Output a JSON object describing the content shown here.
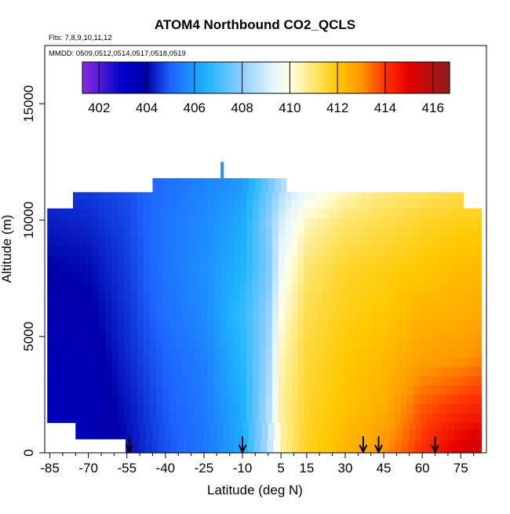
{
  "chart_data": {
    "type": "heatmap",
    "title": "ATOM4 Northbound CO2_QCLS",
    "subtitle_lines": [
      "Flts: 7,8,9,10,11,12",
      "MMDD: 0509,0512,0514,0517,0518,0519"
    ],
    "xlabel": "Latitude (deg N)",
    "ylabel": "Altitude (m)",
    "xlim": [
      -87,
      85
    ],
    "ylim": [
      0,
      17500
    ],
    "x_ticks": [
      -85,
      -70,
      -55,
      -40,
      -25,
      -10,
      5,
      15,
      30,
      45,
      60,
      75
    ],
    "y_ticks": [
      0,
      5000,
      10000,
      15000
    ],
    "colorbar": {
      "ticks": [
        402,
        404,
        406,
        408,
        410,
        412,
        414,
        416
      ],
      "range": [
        401.3,
        416.7
      ],
      "stops": [
        {
          "value": 401.3,
          "color": "#8a2be2"
        },
        {
          "value": 403.0,
          "color": "#0000c8"
        },
        {
          "value": 404.0,
          "color": "#0000aa"
        },
        {
          "value": 405.0,
          "color": "#1e64ff"
        },
        {
          "value": 406.5,
          "color": "#1eb4ff"
        },
        {
          "value": 408.0,
          "color": "#8ccfff"
        },
        {
          "value": 409.3,
          "color": "#e6f5ff"
        },
        {
          "value": 410.0,
          "color": "#ffffe6"
        },
        {
          "value": 411.0,
          "color": "#ffe66e"
        },
        {
          "value": 412.0,
          "color": "#ffc800"
        },
        {
          "value": 413.0,
          "color": "#ff9600"
        },
        {
          "value": 414.0,
          "color": "#ff3200"
        },
        {
          "value": 415.0,
          "color": "#e60000"
        },
        {
          "value": 416.7,
          "color": "#8c1e1e"
        }
      ]
    },
    "arrows_latitude": [
      -54,
      -10,
      37,
      43,
      65
    ],
    "lat_nodes": [
      -85,
      -70,
      -55,
      -40,
      -25,
      -10,
      0,
      5,
      15,
      30,
      45,
      60,
      75,
      83
    ],
    "alt_nodes": [
      0,
      2000,
      4000,
      6000,
      8000,
      10000,
      11500
    ],
    "co2_grid": [
      [
        403.4,
        403.5,
        404.1,
        404.8,
        405.3,
        406.3,
        408.5,
        410.5,
        411.7,
        412.4,
        413.0,
        414.1,
        415.3,
        415.6
      ],
      [
        403.5,
        403.6,
        404.2,
        404.9,
        405.4,
        406.4,
        408.4,
        410.6,
        411.6,
        412.1,
        412.5,
        413.6,
        414.1,
        414.3
      ],
      [
        403.6,
        403.7,
        404.4,
        405.0,
        405.5,
        406.6,
        408.2,
        410.4,
        411.5,
        412.0,
        412.3,
        412.8,
        413.0,
        413.2
      ],
      [
        403.8,
        403.9,
        404.5,
        405.2,
        405.7,
        406.8,
        408.0,
        410.0,
        411.3,
        411.8,
        412.0,
        412.4,
        412.5,
        412.6
      ],
      [
        404.0,
        404.1,
        404.6,
        405.3,
        405.8,
        406.5,
        407.7,
        409.5,
        411.0,
        411.6,
        411.8,
        412.0,
        412.2,
        412.3
      ],
      [
        404.3,
        404.4,
        404.7,
        405.3,
        405.7,
        406.3,
        407.9,
        409.0,
        410.3,
        411.0,
        411.3,
        411.6,
        411.8,
        411.8
      ],
      [
        404.5,
        404.6,
        404.8,
        405.2,
        405.6,
        406.0,
        407.5,
        408.4,
        409.4,
        410.2,
        410.8,
        411.0,
        411.2,
        411.2
      ]
    ],
    "coverage": [
      {
        "alt_bottom": 0,
        "alt_top": 600,
        "lat_min": -55.5,
        "lat_max": 83
      },
      {
        "alt_bottom": 600,
        "alt_top": 1300,
        "lat_min": -75,
        "lat_max": 83
      },
      {
        "alt_bottom": 1300,
        "alt_top": 10500,
        "lat_min": -86,
        "lat_max": 83
      },
      {
        "alt_bottom": 10500,
        "alt_top": 11200,
        "lat_min": -76,
        "lat_max": 76
      },
      {
        "alt_bottom": 11200,
        "alt_top": 11800,
        "lat_min": -45,
        "lat_max": 7
      },
      {
        "alt_bottom": 11800,
        "alt_top": 12500,
        "lat_min": -18.5,
        "lat_max": -17.5
      }
    ]
  }
}
